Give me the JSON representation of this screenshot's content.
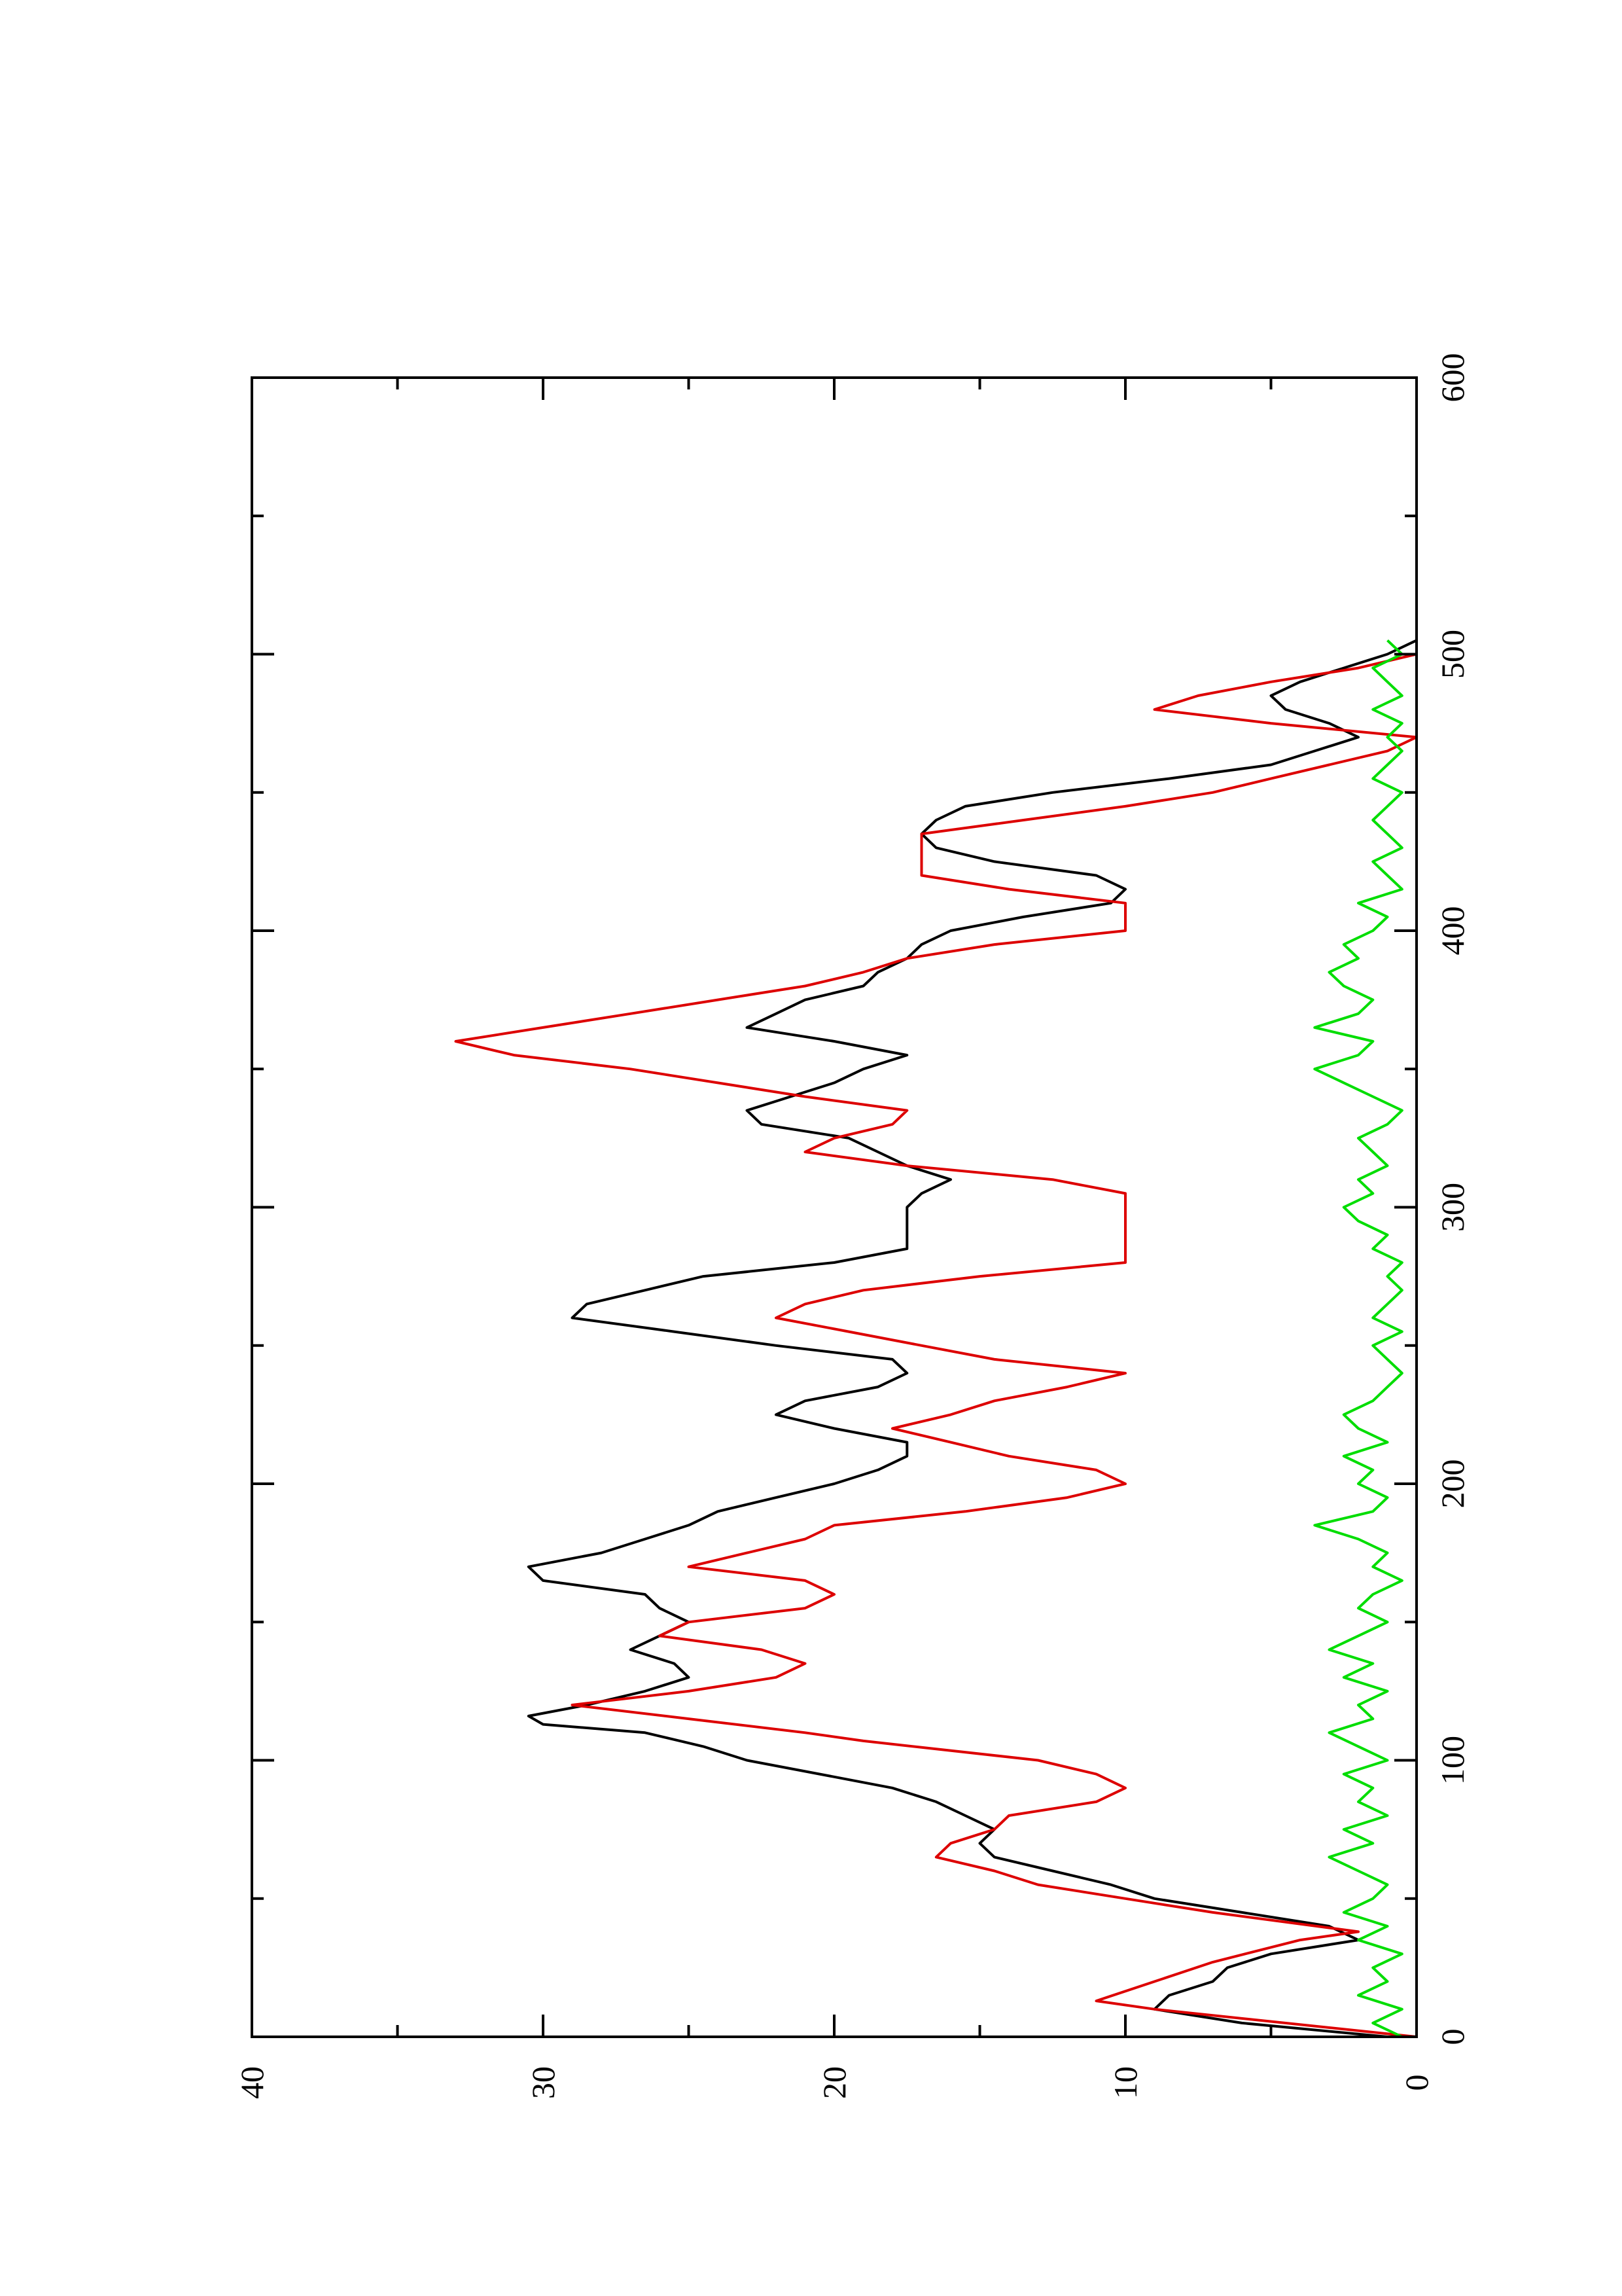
{
  "chart_data": {
    "type": "line",
    "orientation": "rotated-90-counterclockwise",
    "title": "",
    "xlabel": "",
    "ylabel": "",
    "xlim": [
      0,
      600
    ],
    "ylim": [
      0,
      40
    ],
    "x_ticks": [
      "0",
      "100",
      "200",
      "300",
      "400",
      "500",
      "600"
    ],
    "y_ticks": [
      "0",
      "10",
      "20",
      "30",
      "40"
    ],
    "grid": false,
    "legend": "none",
    "colors": {
      "black": "#000000",
      "red": "#dd0000",
      "green": "#00dd00"
    },
    "series": [
      {
        "color": "#000000",
        "x": [
          0,
          5,
          10,
          15,
          20,
          25,
          30,
          35,
          40,
          45,
          50,
          55,
          60,
          65,
          70,
          75,
          80,
          85,
          90,
          95,
          100,
          105,
          110,
          113,
          116,
          120,
          125,
          130,
          135,
          140,
          145,
          150,
          155,
          160,
          165,
          170,
          175,
          180,
          185,
          190,
          195,
          200,
          205,
          210,
          215,
          220,
          225,
          230,
          235,
          240,
          245,
          250,
          255,
          260,
          265,
          270,
          275,
          280,
          285,
          290,
          295,
          300,
          305,
          310,
          315,
          320,
          325,
          330,
          335,
          340,
          345,
          350,
          355,
          360,
          365,
          370,
          375,
          380,
          385,
          390,
          395,
          400,
          405,
          410,
          415,
          420,
          425,
          430,
          435,
          440,
          445,
          450,
          455,
          460,
          465,
          470,
          475,
          480,
          485,
          490,
          495,
          500,
          505
        ],
        "y": [
          1,
          6,
          9,
          8.5,
          7,
          6.5,
          5,
          2,
          3,
          6,
          9,
          10.5,
          12.5,
          14.5,
          15,
          14.5,
          15.5,
          16.5,
          18,
          20.5,
          23,
          24.5,
          26.5,
          30,
          30.5,
          28.5,
          26.5,
          25,
          25.5,
          27,
          26,
          25,
          26,
          26.5,
          30,
          30.5,
          28,
          26.5,
          25,
          24,
          22,
          20,
          18.5,
          17.5,
          17.5,
          20,
          22,
          21,
          18.5,
          17.5,
          18,
          22,
          25.5,
          29,
          28.5,
          26.5,
          24.5,
          20,
          17.5,
          17.5,
          17.5,
          17.5,
          17,
          16,
          17.5,
          18.5,
          19.5,
          22.5,
          23,
          21.5,
          20,
          19,
          17.5,
          20,
          23,
          22,
          21,
          19,
          18.5,
          17.5,
          17,
          16,
          13.5,
          10.5,
          10,
          11,
          14.5,
          16.5,
          17,
          16.5,
          15.5,
          12.5,
          8.5,
          5,
          3.5,
          2,
          3,
          4.5,
          5,
          4,
          2.5,
          1,
          0
        ]
      },
      {
        "color": "#dd0000",
        "x": [
          0,
          10,
          13,
          20,
          27,
          35,
          38,
          45,
          50,
          55,
          60,
          65,
          70,
          75,
          80,
          85,
          90,
          95,
          100,
          107,
          110,
          115,
          120,
          125,
          130,
          135,
          140,
          145,
          150,
          155,
          160,
          165,
          170,
          175,
          180,
          185,
          190,
          195,
          200,
          205,
          210,
          215,
          220,
          225,
          230,
          235,
          240,
          245,
          250,
          255,
          260,
          265,
          270,
          275,
          280,
          285,
          290,
          295,
          300,
          305,
          310,
          315,
          320,
          325,
          330,
          335,
          340,
          345,
          350,
          355,
          360,
          365,
          370,
          375,
          380,
          385,
          390,
          395,
          400,
          405,
          410,
          415,
          420,
          425,
          430,
          435,
          440,
          445,
          450,
          455,
          460,
          465,
          470,
          475,
          480,
          485,
          490,
          495,
          500
        ],
        "y": [
          0,
          9,
          11,
          9,
          7,
          4,
          2,
          7,
          10,
          13,
          14.5,
          16.5,
          16,
          14.5,
          14,
          11,
          10,
          11,
          13,
          19,
          21,
          25,
          29,
          25,
          22,
          21,
          22.5,
          26,
          25,
          21,
          20,
          21,
          25,
          23,
          21,
          20,
          15.5,
          12,
          10,
          11,
          14,
          16,
          18,
          16,
          14.5,
          12,
          10,
          14.5,
          17,
          19.5,
          22,
          21,
          19,
          15,
          10,
          10,
          10,
          10,
          10,
          10,
          12.5,
          17.5,
          21,
          20,
          18,
          17.5,
          21,
          24,
          27,
          31,
          33,
          30,
          27,
          24,
          21,
          19,
          17.5,
          14.5,
          10,
          10,
          10,
          14,
          17,
          17,
          17,
          17,
          13.5,
          10,
          7,
          5,
          3,
          1,
          0,
          5,
          9,
          7.5,
          5,
          2,
          0
        ]
      },
      {
        "color": "#00dd00",
        "x": [
          0,
          5,
          10,
          15,
          20,
          25,
          30,
          35,
          40,
          45,
          50,
          55,
          60,
          65,
          70,
          75,
          80,
          85,
          90,
          95,
          100,
          105,
          110,
          115,
          120,
          125,
          130,
          135,
          140,
          145,
          150,
          155,
          160,
          165,
          170,
          175,
          180,
          185,
          190,
          195,
          200,
          205,
          210,
          215,
          220,
          225,
          230,
          235,
          240,
          245,
          250,
          255,
          260,
          265,
          270,
          275,
          280,
          285,
          290,
          295,
          300,
          305,
          310,
          315,
          320,
          325,
          330,
          335,
          340,
          345,
          350,
          355,
          360,
          365,
          370,
          375,
          380,
          385,
          390,
          395,
          400,
          405,
          410,
          415,
          420,
          425,
          430,
          435,
          440,
          445,
          450,
          455,
          460,
          465,
          470,
          475,
          480,
          485,
          490,
          495,
          500,
          505
        ],
        "y": [
          0.5,
          1.5,
          0.5,
          2,
          1,
          1.5,
          0.5,
          2,
          1,
          2.5,
          1.5,
          1,
          2,
          3,
          1.5,
          2.5,
          1,
          2,
          1.5,
          2.5,
          1,
          2,
          3,
          1.5,
          2,
          1,
          2.5,
          1.5,
          3,
          2,
          1,
          2,
          1.5,
          0.5,
          1.5,
          1,
          2,
          3.5,
          1.5,
          1,
          2,
          1.5,
          2.5,
          1,
          2,
          2.5,
          1.5,
          1,
          0.5,
          1,
          1.5,
          0.5,
          1.5,
          1,
          0.5,
          1,
          0.5,
          1.5,
          1,
          2,
          2.5,
          1.5,
          2,
          1,
          1.5,
          2,
          1,
          0.5,
          1.5,
          2.5,
          3.5,
          2,
          1.5,
          3.5,
          2,
          1.5,
          2.5,
          3,
          2,
          2.5,
          1.5,
          1,
          2,
          0.5,
          1,
          1.5,
          0.5,
          1,
          1.5,
          1,
          0.5,
          1.5,
          1,
          0.5,
          1,
          0.5,
          1.5,
          0.5,
          1,
          1.5,
          0.5,
          1
        ]
      }
    ]
  }
}
